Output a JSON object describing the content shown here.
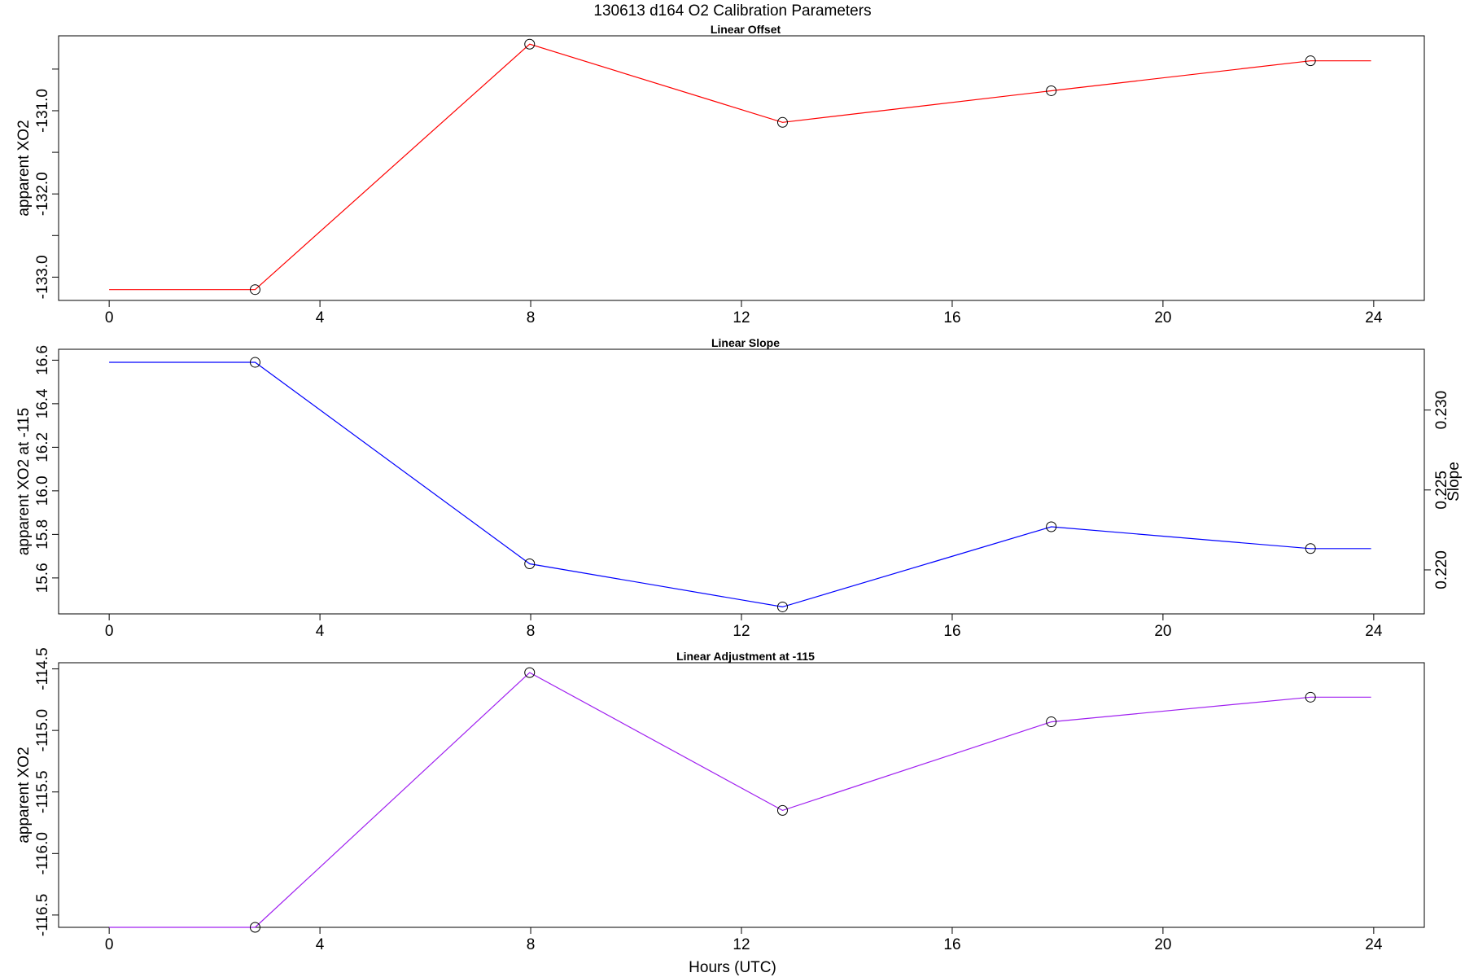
{
  "figure": {
    "title": "130613   d164   O2 Calibration Parameters",
    "xlabel": "Hours (UTC)"
  },
  "chart_data": [
    {
      "type": "line",
      "title": "Linear Offset",
      "xlabel": "",
      "ylabel": "apparent XO2",
      "xticks": [
        0,
        4,
        8,
        12,
        16,
        20,
        24
      ],
      "xlim": [
        -0.96,
        24.96
      ],
      "ylim": [
        -133.28,
        -130.1
      ],
      "yticks": [
        -133.0,
        -132.0,
        -131.0
      ],
      "ytick_labels": [
        "-133.0",
        "-132.0",
        "-131.0"
      ],
      "yminor": [
        -132.5,
        -131.5,
        -130.5
      ],
      "color": "#ff0000",
      "series": [
        {
          "x": [
            0,
            2.77,
            7.98,
            12.78,
            17.88,
            22.8,
            23.95
          ],
          "y": [
            -133.15,
            -133.15,
            -130.2,
            -131.14,
            -130.76,
            -130.4,
            -130.4
          ]
        }
      ],
      "markers": [
        {
          "x": [
            2.77,
            7.98,
            12.78,
            17.88,
            22.8
          ],
          "y": [
            -133.15,
            -130.2,
            -131.14,
            -130.76,
            -130.4
          ]
        }
      ]
    },
    {
      "type": "line",
      "title": "Linear Slope",
      "xlabel": "",
      "ylabel": "apparent XO2 at -115",
      "ylabel_right": "Slope",
      "xticks": [
        0,
        4,
        8,
        12,
        16,
        20,
        24
      ],
      "xlim": [
        -0.96,
        24.96
      ],
      "ylim": [
        15.435,
        16.65
      ],
      "yticks": [
        15.6,
        15.8,
        16.0,
        16.2,
        16.4,
        16.6
      ],
      "ytick_labels": [
        "15.6",
        "15.8",
        "16.0",
        "16.2",
        "16.4",
        "16.6"
      ],
      "yticks_right": [
        0.22,
        0.225,
        0.23
      ],
      "ytick_labels_right": [
        "0.220",
        "0.225",
        "0.230"
      ],
      "right_axis_map": {
        "a": 0.22,
        "b": 15.637,
        "c": 0.225,
        "d": 16.004
      },
      "color": "#0000ff",
      "series": [
        {
          "x": [
            0,
            2.77,
            7.98,
            12.78,
            17.88,
            22.8,
            23.95
          ],
          "y": [
            16.59,
            16.59,
            15.665,
            15.467,
            15.835,
            15.735,
            15.735
          ]
        }
      ],
      "markers": [
        {
          "x": [
            2.77,
            7.98,
            12.78,
            17.88,
            22.8
          ],
          "y": [
            16.59,
            15.665,
            15.467,
            15.835,
            15.735
          ]
        }
      ]
    },
    {
      "type": "line",
      "title": "Linear Adjustment at -115",
      "xlabel": "",
      "ylabel": "apparent XO2",
      "xticks": [
        0,
        4,
        8,
        12,
        16,
        20,
        24
      ],
      "xlim": [
        -0.96,
        24.96
      ],
      "ylim": [
        -116.6,
        -114.45
      ],
      "yticks": [
        -116.5,
        -116.0,
        -115.5,
        -115.0,
        -114.5
      ],
      "ytick_labels": [
        "-116.5",
        "-116.0",
        "-115.5",
        "-115.0",
        "-114.5"
      ],
      "color": "#a020f0",
      "series": [
        {
          "x": [
            0,
            2.77,
            7.98,
            12.78,
            17.88,
            22.8,
            23.95
          ],
          "y": [
            -116.6,
            -116.6,
            -114.53,
            -115.65,
            -114.93,
            -114.73,
            -114.73
          ]
        }
      ],
      "markers": [
        {
          "x": [
            2.77,
            7.98,
            12.78,
            17.88,
            22.8
          ],
          "y": [
            -116.6,
            -114.53,
            -115.65,
            -114.93,
            -114.73
          ]
        }
      ]
    }
  ]
}
